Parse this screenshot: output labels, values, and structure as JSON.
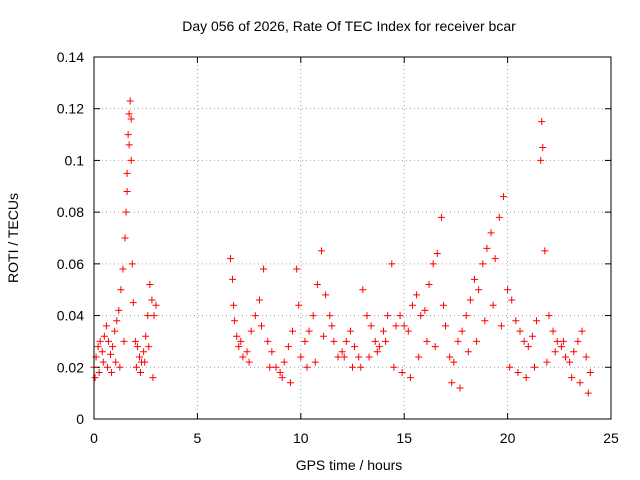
{
  "chart_data": {
    "type": "scatter",
    "title": "Day 056 of 2026, Rate Of TEC Index for receiver bcar",
    "xlabel": "GPS time / hours",
    "ylabel": "ROTI / TECUs",
    "xlim": [
      0,
      25
    ],
    "ylim": [
      0,
      0.14
    ],
    "xticks": [
      "0",
      "5",
      "10",
      "15",
      "20",
      "25"
    ],
    "yticks": [
      "0",
      "0.02",
      "0.04",
      "0.06",
      "0.08",
      "0.1",
      "0.12",
      "0.14"
    ],
    "grid": true,
    "marker": "+",
    "color": "#ff0000",
    "series": [
      {
        "x": [
          0.0,
          0.1,
          0.2,
          0.3,
          0.4,
          0.5,
          0.6,
          0.7,
          0.8,
          0.9,
          1.0,
          1.1,
          1.2,
          1.3,
          1.4,
          1.5,
          1.55,
          1.6,
          1.65,
          1.7,
          1.75,
          1.8,
          1.85,
          1.9,
          2.0,
          2.1,
          2.2,
          2.3,
          2.4,
          2.5,
          2.6,
          2.7,
          2.8,
          2.9,
          3.0,
          0.05,
          0.25,
          0.45,
          0.65,
          0.85,
          1.05,
          1.25,
          1.45,
          1.6,
          1.7,
          1.8,
          2.05,
          2.25,
          2.45,
          2.65,
          2.85,
          6.6,
          6.7,
          6.8,
          6.9,
          7.0,
          7.2,
          7.4,
          7.6,
          7.8,
          8.0,
          8.2,
          8.4,
          8.6,
          8.8,
          9.0,
          9.2,
          9.4,
          9.6,
          9.8,
          10.0,
          10.2,
          10.4,
          10.6,
          10.8,
          11.0,
          11.2,
          11.4,
          11.6,
          11.8,
          12.0,
          12.2,
          12.4,
          12.6,
          12.8,
          13.0,
          13.2,
          13.4,
          13.6,
          13.8,
          14.0,
          14.2,
          14.4,
          14.6,
          14.8,
          15.0,
          15.2,
          15.4,
          15.6,
          15.8,
          16.0,
          16.2,
          16.4,
          16.6,
          16.8,
          17.0,
          17.2,
          17.4,
          17.6,
          17.8,
          18.0,
          18.2,
          18.4,
          18.6,
          18.8,
          19.0,
          19.2,
          19.4,
          19.6,
          19.8,
          20.0,
          20.2,
          20.4,
          20.6,
          20.8,
          21.0,
          21.2,
          21.4,
          21.6,
          21.65,
          21.7,
          21.8,
          22.0,
          22.2,
          22.4,
          22.6,
          22.8,
          23.0,
          23.2,
          23.4,
          23.6,
          23.8,
          24.0,
          6.75,
          7.1,
          7.5,
          8.1,
          8.5,
          9.1,
          9.5,
          9.9,
          10.3,
          10.7,
          11.1,
          11.5,
          12.1,
          12.5,
          12.9,
          13.3,
          13.7,
          14.1,
          14.5,
          14.9,
          15.3,
          15.7,
          16.1,
          16.5,
          16.9,
          17.3,
          17.7,
          18.1,
          18.5,
          18.9,
          19.3,
          19.7,
          20.1,
          20.5,
          20.9,
          21.3,
          21.9,
          22.3,
          22.7,
          23.1,
          23.5,
          23.9
        ],
        "y": [
          0.02,
          0.024,
          0.028,
          0.03,
          0.026,
          0.032,
          0.036,
          0.03,
          0.025,
          0.028,
          0.034,
          0.038,
          0.042,
          0.05,
          0.058,
          0.07,
          0.08,
          0.095,
          0.11,
          0.118,
          0.123,
          0.1,
          0.06,
          0.045,
          0.03,
          0.028,
          0.024,
          0.022,
          0.026,
          0.032,
          0.04,
          0.052,
          0.046,
          0.04,
          0.044,
          0.016,
          0.018,
          0.022,
          0.02,
          0.018,
          0.022,
          0.02,
          0.03,
          0.088,
          0.106,
          0.116,
          0.02,
          0.018,
          0.022,
          0.028,
          0.016,
          0.062,
          0.054,
          0.038,
          0.032,
          0.028,
          0.024,
          0.026,
          0.034,
          0.04,
          0.046,
          0.058,
          0.03,
          0.026,
          0.02,
          0.018,
          0.022,
          0.028,
          0.034,
          0.058,
          0.024,
          0.03,
          0.034,
          0.04,
          0.052,
          0.065,
          0.048,
          0.04,
          0.03,
          0.024,
          0.026,
          0.03,
          0.034,
          0.028,
          0.024,
          0.05,
          0.04,
          0.036,
          0.03,
          0.028,
          0.034,
          0.04,
          0.06,
          0.036,
          0.04,
          0.036,
          0.034,
          0.044,
          0.048,
          0.04,
          0.042,
          0.052,
          0.06,
          0.064,
          0.078,
          0.036,
          0.024,
          0.022,
          0.03,
          0.034,
          0.04,
          0.046,
          0.054,
          0.05,
          0.06,
          0.066,
          0.072,
          0.062,
          0.078,
          0.086,
          0.05,
          0.046,
          0.038,
          0.034,
          0.03,
          0.028,
          0.032,
          0.038,
          0.1,
          0.115,
          0.105,
          0.065,
          0.04,
          0.034,
          0.03,
          0.028,
          0.024,
          0.022,
          0.026,
          0.03,
          0.034,
          0.024,
          0.018,
          0.044,
          0.03,
          0.022,
          0.036,
          0.02,
          0.016,
          0.014,
          0.044,
          0.02,
          0.022,
          0.032,
          0.036,
          0.024,
          0.02,
          0.02,
          0.024,
          0.026,
          0.03,
          0.02,
          0.018,
          0.016,
          0.024,
          0.03,
          0.028,
          0.044,
          0.014,
          0.012,
          0.026,
          0.03,
          0.038,
          0.044,
          0.036,
          0.02,
          0.018,
          0.016,
          0.02,
          0.022,
          0.026,
          0.03,
          0.016,
          0.014,
          0.01
        ]
      }
    ]
  }
}
